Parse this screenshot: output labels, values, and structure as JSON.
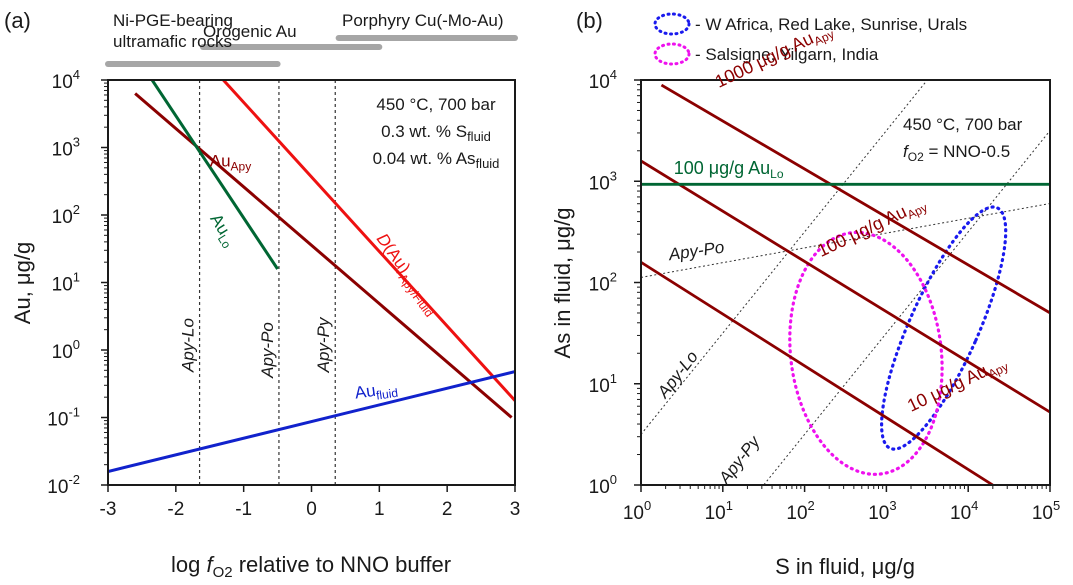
{
  "chart_data": [
    {
      "panel": "(a)",
      "type": "line",
      "xlabel_pre": "log ",
      "xlabel_f": "f",
      "xlabel_sub": "O2",
      "xlabel_post": " relative to NNO buffer",
      "ylabel": "Au, μg/g",
      "xlim": [
        -3,
        3
      ],
      "ylim_log10": [
        -2,
        4
      ],
      "yscale": "log",
      "xticks": [
        "-3",
        "-2",
        "-1",
        "0",
        "1",
        "2",
        "3"
      ],
      "ytick_exponents": [
        "-2",
        "-1",
        "0",
        "1",
        "2",
        "3",
        "4"
      ],
      "ytick_base": "10",
      "conditions": {
        "line1": "450 °C, 700 bar",
        "line2_pre": "0.3 wt. % S",
        "line2_sub": "fluid",
        "line3_pre": "0.04 wt. % As",
        "line3_sub": "fluid"
      },
      "deposit_ranges": [
        {
          "label_lines": [
            "Ni-PGE-bearing",
            "ultramafic rocks"
          ],
          "x": [
            -3,
            -0.5
          ]
        },
        {
          "label_lines": [
            "Orogenic Au"
          ],
          "x": [
            -1.6,
            1.0
          ]
        },
        {
          "label_lines": [
            "Porphyry Cu(-Mo-Au)"
          ],
          "x": [
            0.4,
            3.0
          ]
        }
      ],
      "boundaries": [
        {
          "label": "Apy-Lo",
          "x": -1.65
        },
        {
          "label": "Apy-Po",
          "x": -0.48
        },
        {
          "label": "Apy-Py",
          "x": 0.35
        }
      ],
      "series": [
        {
          "name_main": "Au",
          "name_sub": "Apy",
          "color": "#8b0000",
          "x": [
            -2.6,
            2.95
          ],
          "log10_y": [
            3.8,
            -1.0
          ]
        },
        {
          "name_main": "Au",
          "name_sub": "Lo",
          "color": "#006633",
          "x": [
            -2.35,
            -0.5
          ],
          "log10_y": [
            4.0,
            1.2
          ]
        },
        {
          "name_main": "D(Au)",
          "name_sub": "Apy/Fluid",
          "color": "#ee1111",
          "x": [
            -1.3,
            3.0
          ],
          "log10_y": [
            4.0,
            -0.75
          ]
        },
        {
          "name_main": "Au",
          "name_sub": "fluid",
          "color": "#1122cc",
          "x": [
            -3.0,
            3.0
          ],
          "log10_y": [
            -1.8,
            -0.32
          ]
        }
      ]
    },
    {
      "panel": "(b)",
      "type": "line",
      "xlabel": "S in fluid, μg/g",
      "ylabel": "As in fluid, μg/g",
      "xscale": "log",
      "yscale": "log",
      "xlim_log10": [
        0,
        5
      ],
      "ylim_log10": [
        0,
        4
      ],
      "xtick_exponents": [
        "0",
        "1",
        "2",
        "3",
        "4",
        "5"
      ],
      "ytick_exponents": [
        "0",
        "1",
        "2",
        "3",
        "4"
      ],
      "tick_base": "10",
      "conditions": {
        "line1": "450 °C, 700 bar",
        "line2_f": "f",
        "line2_sub": "O2",
        "line2_post": " = NNO-0.5"
      },
      "legend": [
        {
          "label": "- W Africa, Red Lake, Sunrise, Urals",
          "color": "#1a1aee"
        },
        {
          "label": "- Salsigne, Yilgarn, India",
          "color": "#ee11ee"
        }
      ],
      "series": [
        {
          "label_pre": "1000 μg/g Au",
          "label_sub": "Apy",
          "color": "#8b0000",
          "log10_x": [
            0.25,
            5.0
          ],
          "log10_y": [
            3.95,
            1.7
          ]
        },
        {
          "label_pre": "100 μg/g Au",
          "label_sub": "Apy",
          "color": "#8b0000",
          "log10_x": [
            0.0,
            5.0
          ],
          "log10_y": [
            3.2,
            0.72
          ]
        },
        {
          "label_pre": "10 μg/g Au",
          "label_sub": "Apy",
          "color": "#8b0000",
          "log10_x": [
            0.0,
            4.3
          ],
          "log10_y": [
            2.2,
            0.0
          ]
        },
        {
          "label_pre": "100 μg/g Au",
          "label_sub": "Lo",
          "color": "#006633",
          "log10_x": [
            0.0,
            5.0
          ],
          "log10_y": [
            2.97,
            2.97
          ]
        }
      ],
      "boundaries": [
        {
          "label": "Apy-Lo",
          "log10_x": [
            0.0,
            5.0
          ],
          "log10_y": [
            0.5,
            5.5
          ]
        },
        {
          "label": "Apy-Po",
          "log10_x": [
            0.0,
            5.0
          ],
          "log10_y": [
            2.05,
            2.78
          ]
        },
        {
          "label": "Apy-Py",
          "log10_x": [
            0.5,
            5.0
          ],
          "log10_y": [
            -1.0,
            3.5
          ]
        }
      ],
      "fields": [
        {
          "name": "W Africa, Red Lake, Sunrise, Urals",
          "color": "#1a1aee",
          "center_log10": [
            3.7,
            1.55
          ],
          "semi_log10": [
            0.42,
            1.3
          ],
          "tilt_deg": 24
        },
        {
          "name": "Salsigne, Yilgarn, India",
          "color": "#ee11ee",
          "center_log10": [
            2.75,
            1.3
          ],
          "semi_log10": [
            0.92,
            1.2
          ],
          "tilt_deg": -7
        }
      ]
    }
  ]
}
